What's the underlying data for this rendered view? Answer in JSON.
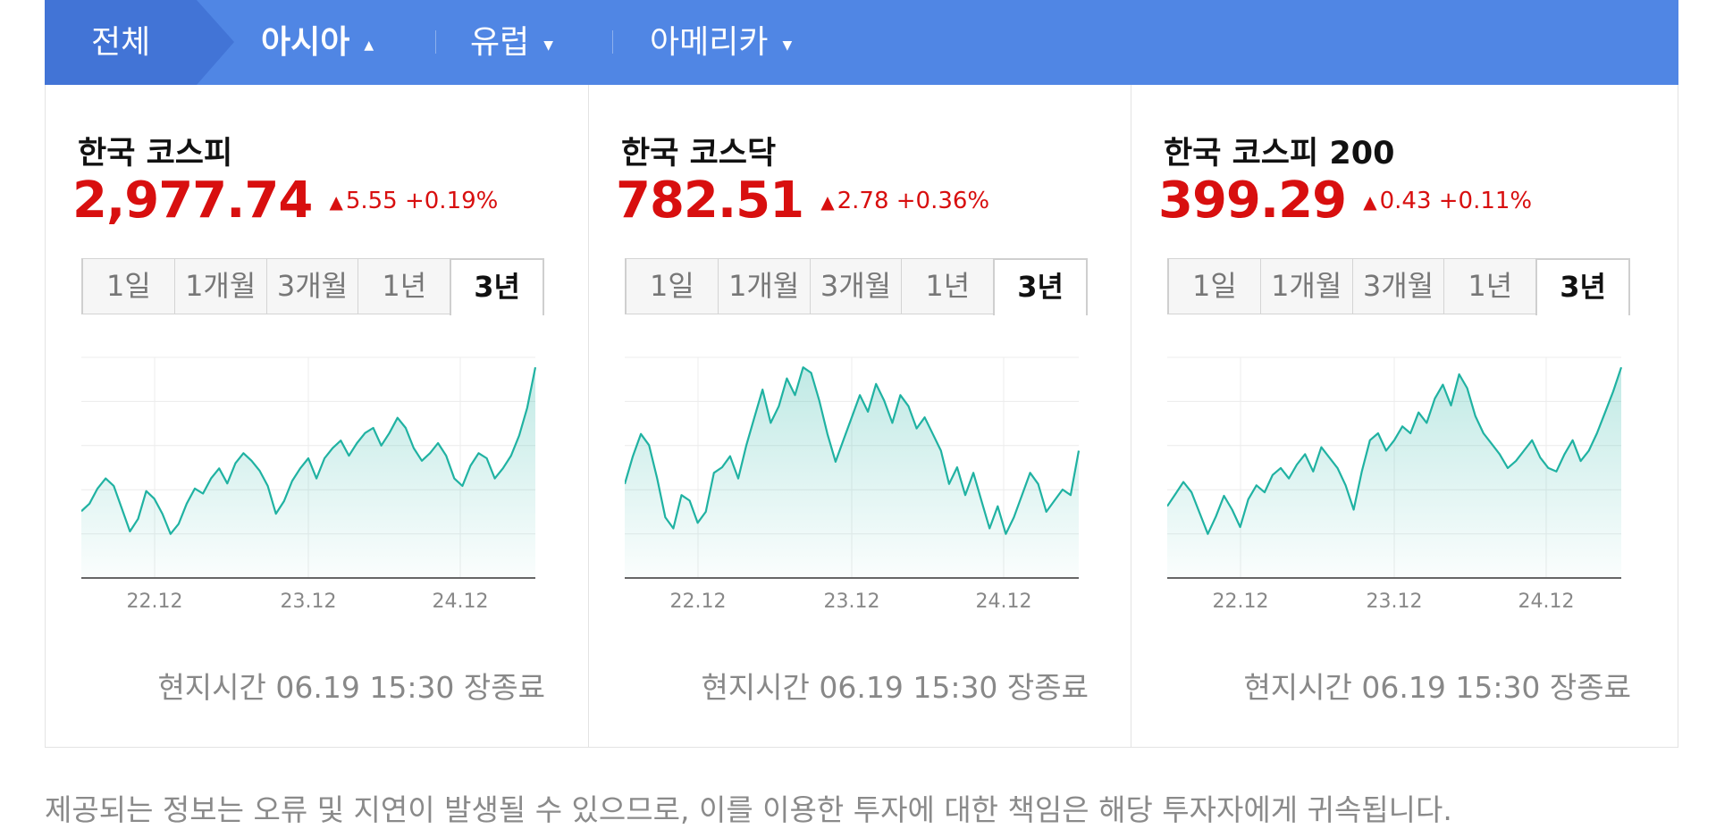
{
  "nav": {
    "tabs": [
      {
        "label": "전체"
      },
      {
        "label": "아시아",
        "active": true,
        "caret": "up"
      },
      {
        "label": "유럽",
        "caret": "down"
      },
      {
        "label": "아메리카",
        "caret": "down"
      }
    ]
  },
  "colors": {
    "nav_bg": "#5086e4",
    "nav_selected_bg": "#4274d6",
    "rise": "#d80f0f",
    "line": "#20b2a2"
  },
  "periods": [
    "1일",
    "1개월",
    "3개월",
    "1년",
    "3년"
  ],
  "selected_period": "3년",
  "cards": [
    {
      "name": "한국 코스피",
      "price": "2,977.74",
      "change": "5.55",
      "change_pct": "+0.19%",
      "direction_icon": "triangle-up-icon",
      "updated": "현지시간 06.19 15:30 장종료",
      "chart_data": {
        "type": "area",
        "xticks": [
          "22.12",
          "23.12",
          "24.12"
        ],
        "values": [
          2390,
          2420,
          2480,
          2520,
          2490,
          2400,
          2310,
          2360,
          2470,
          2440,
          2380,
          2300,
          2340,
          2420,
          2480,
          2460,
          2520,
          2560,
          2500,
          2580,
          2620,
          2590,
          2550,
          2490,
          2380,
          2430,
          2510,
          2560,
          2600,
          2520,
          2600,
          2640,
          2670,
          2610,
          2660,
          2700,
          2720,
          2650,
          2700,
          2760,
          2720,
          2640,
          2590,
          2620,
          2660,
          2610,
          2520,
          2490,
          2570,
          2620,
          2600,
          2520,
          2560,
          2610,
          2690,
          2800,
          2960
        ]
      }
    },
    {
      "name": "한국 코스닥",
      "price": "782.51",
      "change": "2.78",
      "change_pct": "+0.36%",
      "direction_icon": "triangle-up-icon",
      "updated": "현지시간 06.19 15:30 장종료",
      "chart_data": {
        "type": "area",
        "xticks": [
          "22.12",
          "23.12",
          "24.12"
        ],
        "values": [
          780,
          830,
          870,
          850,
          790,
          720,
          700,
          760,
          750,
          710,
          730,
          800,
          810,
          830,
          790,
          850,
          900,
          950,
          890,
          920,
          970,
          940,
          990,
          980,
          930,
          870,
          820,
          860,
          900,
          940,
          910,
          960,
          930,
          890,
          940,
          920,
          880,
          900,
          870,
          840,
          780,
          810,
          760,
          800,
          750,
          700,
          740,
          690,
          720,
          760,
          800,
          780,
          730,
          750,
          770,
          760,
          840
        ]
      }
    },
    {
      "name": "한국 코스피 200",
      "price": "399.29",
      "change": "0.43",
      "change_pct": "+0.11%",
      "direction_icon": "triangle-up-icon",
      "updated": "현지시간 06.19 15:30 장종료",
      "chart_data": {
        "type": "area",
        "xticks": [
          "22.12",
          "23.12",
          "24.12"
        ],
        "values": [
          318,
          325,
          332,
          326,
          314,
          302,
          312,
          324,
          316,
          306,
          322,
          330,
          326,
          336,
          340,
          334,
          342,
          348,
          338,
          352,
          346,
          340,
          330,
          316,
          338,
          356,
          360,
          350,
          356,
          364,
          360,
          372,
          366,
          380,
          388,
          376,
          394,
          386,
          370,
          360,
          354,
          348,
          340,
          344,
          350,
          356,
          346,
          340,
          338,
          348,
          356,
          344,
          350,
          360,
          372,
          384,
          398
        ]
      }
    }
  ],
  "disclaimer": "제공되는 정보는 오류 및 지연이 발생될 수 있으므로, 이를 이용한 투자에 대한 책임은 해당 투자자에게 귀속됩니다."
}
